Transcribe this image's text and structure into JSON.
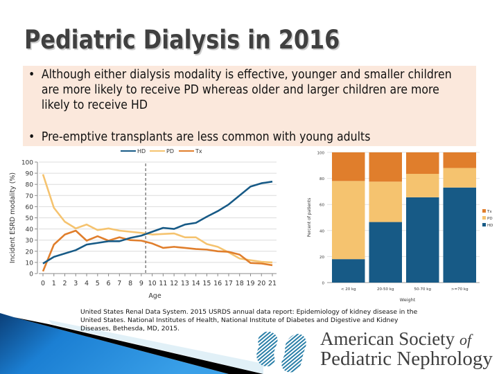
{
  "slide": {
    "title": "Pediatric Dialysis in 2016",
    "bullets": [
      {
        "marker": "•",
        "text": "Although either dialysis modality is effective, younger and smaller children are more likely to receive PD whereas older and larger children are more likely to receive HD"
      },
      {
        "marker": "•",
        "text": "Pre-emptive transplants are less common with young adults"
      }
    ],
    "citation": "United States Renal Data System. 2015 USRDS annual data report: Epidemiology of kidney disease in the United States. National Institutes of Health, National Institute of Diabetes and Digestive and Kidney Diseases, Bethesda, MD, 2015.",
    "logo": {
      "line1": "American Society",
      "line1_suffix": "of",
      "line2": "Pediatric Nephrology",
      "icon": "kidney-icon"
    },
    "colors": {
      "box_background": "#fbe8dc",
      "HD": "#175a86",
      "PD": "#f5c36f",
      "Tx": "#e07e2c",
      "swoosh": "#1f7fd0"
    }
  },
  "chart_data": [
    {
      "type": "line",
      "title": "",
      "xlabel": "Age",
      "ylabel": "Incident ESRD modality (%)",
      "x": [
        0,
        1,
        2,
        3,
        4,
        5,
        6,
        7,
        8,
        9,
        10,
        11,
        12,
        13,
        14,
        15,
        16,
        17,
        18,
        19,
        20,
        21
      ],
      "xlim": [
        0,
        21
      ],
      "ylim": [
        0,
        100
      ],
      "yticks": [
        0,
        10,
        20,
        30,
        40,
        50,
        60,
        70,
        80,
        90,
        100
      ],
      "xticks": [
        "0",
        "1",
        "2",
        "3",
        "4",
        "5",
        "6",
        "7",
        "8",
        "9",
        "10",
        "11",
        "12",
        "13",
        "14",
        "15",
        "16",
        "17",
        "18",
        "19",
        "20",
        "21"
      ],
      "grid": true,
      "legend_position": "top-center",
      "annotations": [
        {
          "type": "vertical-dashed-line",
          "x": 9.4
        }
      ],
      "series": [
        {
          "name": "HD",
          "values": [
            9,
            15,
            18,
            21,
            26,
            27.5,
            29,
            29,
            32,
            34,
            37.5,
            41,
            40,
            44,
            45.5,
            51,
            56,
            62,
            70,
            78,
            81,
            82.5
          ]
        },
        {
          "name": "PD",
          "values": [
            89,
            59,
            46.5,
            40.5,
            44,
            39,
            40.5,
            38.5,
            37.5,
            36.5,
            35,
            35.5,
            36,
            32.5,
            32.5,
            26.5,
            24,
            19,
            13.5,
            12,
            10.5,
            10
          ]
        },
        {
          "name": "Tx",
          "values": [
            2,
            26,
            35,
            38.5,
            29.5,
            33.5,
            29.5,
            32.5,
            30,
            29.5,
            27,
            23,
            24,
            23,
            22,
            21.5,
            20,
            19.5,
            17,
            9.5,
            9,
            7.5
          ]
        }
      ]
    },
    {
      "type": "bar",
      "stacked": true,
      "title": "",
      "xlabel": "Weight",
      "ylabel": "Percent of patients",
      "categories": [
        "< 20 kg",
        "20-50 kg",
        "50-70 kg",
        ">=70 kg"
      ],
      "ylim": [
        0,
        100
      ],
      "yticks": [
        0,
        20,
        40,
        60,
        80,
        100
      ],
      "grid": true,
      "legend_position": "right",
      "legend": [
        "Tx",
        "PD",
        "HD"
      ],
      "series": [
        {
          "name": "HD",
          "values": [
            18,
            46.5,
            65.5,
            73
          ]
        },
        {
          "name": "PD",
          "values": [
            60,
            31,
            18,
            15
          ]
        },
        {
          "name": "Tx",
          "values": [
            22,
            22.5,
            16.5,
            12
          ]
        }
      ]
    }
  ]
}
